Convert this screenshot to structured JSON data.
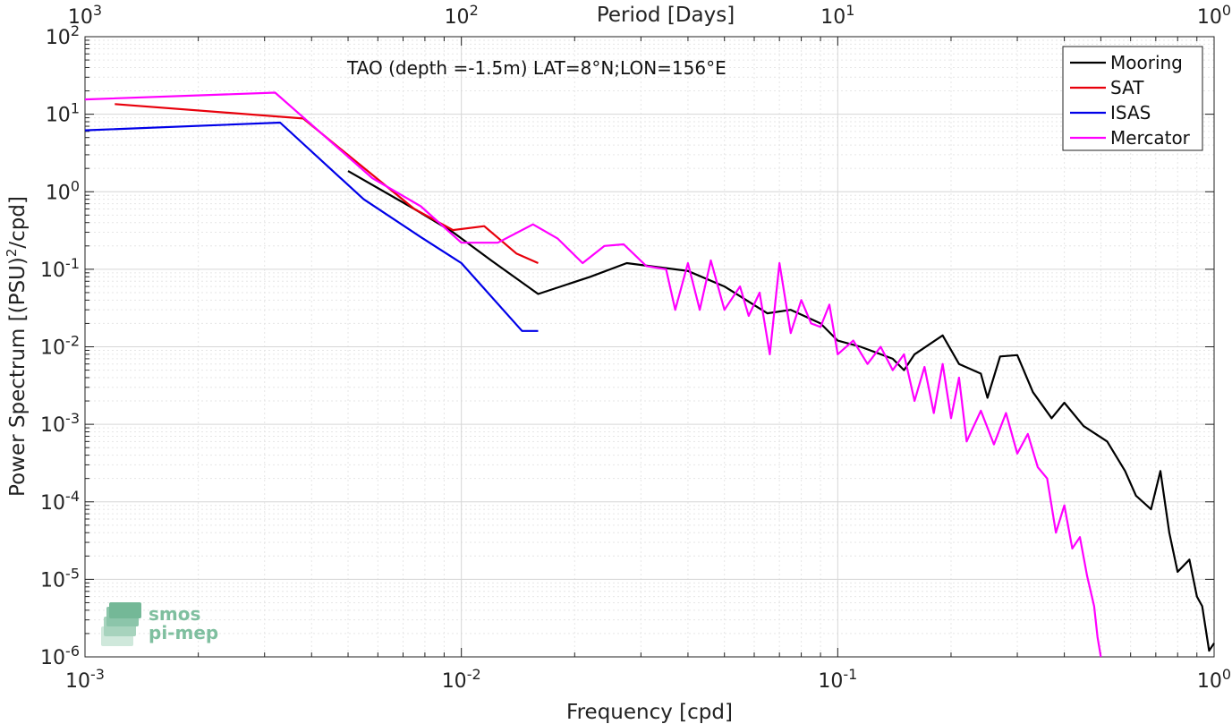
{
  "chart_data": {
    "type": "line",
    "title": "",
    "annotation": "TAO (depth =-1.5m) LAT=8°N;LON=156°E",
    "xlabel": "Frequency [cpd]",
    "ylabel": "Power Spectrum [(PSU)",
    "ylabel_sup": "2",
    "ylabel_tail": "/cpd]",
    "top_xlabel": "Period [Days]",
    "x_scale": "log",
    "y_scale": "log",
    "xlim": [
      0.001,
      1
    ],
    "ylim": [
      1e-06,
      100
    ],
    "grid": true,
    "legend_position": "top-right",
    "x_ticks": [
      {
        "value": 0.001,
        "base": "10",
        "exp": "-3"
      },
      {
        "value": 0.01,
        "base": "10",
        "exp": "-2"
      },
      {
        "value": 0.1,
        "base": "10",
        "exp": "-1"
      },
      {
        "value": 1,
        "base": "10",
        "exp": "0"
      }
    ],
    "y_ticks": [
      {
        "value": 100,
        "base": "10",
        "exp": "2"
      },
      {
        "value": 10,
        "base": "10",
        "exp": "1"
      },
      {
        "value": 1,
        "base": "10",
        "exp": "0"
      },
      {
        "value": 0.1,
        "base": "10",
        "exp": "-1"
      },
      {
        "value": 0.01,
        "base": "10",
        "exp": "-2"
      },
      {
        "value": 0.001,
        "base": "10",
        "exp": "-3"
      },
      {
        "value": 0.0001,
        "base": "10",
        "exp": "-4"
      },
      {
        "value": 1e-05,
        "base": "10",
        "exp": "-5"
      },
      {
        "value": 1e-06,
        "base": "10",
        "exp": "-6"
      }
    ],
    "top_ticks": [
      {
        "value": 0.001,
        "base": "10",
        "exp": "3"
      },
      {
        "value": 0.01,
        "base": "10",
        "exp": "2"
      },
      {
        "value": 0.1,
        "base": "10",
        "exp": "1"
      },
      {
        "value": 1,
        "base": "10",
        "exp": "0"
      }
    ],
    "series": [
      {
        "name": "Mooring",
        "color": "#000000",
        "points": [
          [
            0.005,
            1.85
          ],
          [
            0.0075,
            0.6
          ],
          [
            0.0095,
            0.3
          ],
          [
            0.012,
            0.13
          ],
          [
            0.016,
            0.048
          ],
          [
            0.022,
            0.08
          ],
          [
            0.0275,
            0.12
          ],
          [
            0.04,
            0.095
          ],
          [
            0.05,
            0.06
          ],
          [
            0.065,
            0.027
          ],
          [
            0.075,
            0.03
          ],
          [
            0.09,
            0.02
          ],
          [
            0.1,
            0.012
          ],
          [
            0.115,
            0.01
          ],
          [
            0.14,
            0.007
          ],
          [
            0.15,
            0.005
          ],
          [
            0.16,
            0.008
          ],
          [
            0.19,
            0.014
          ],
          [
            0.21,
            0.006
          ],
          [
            0.24,
            0.0045
          ],
          [
            0.25,
            0.0022
          ],
          [
            0.27,
            0.0075
          ],
          [
            0.3,
            0.0078
          ],
          [
            0.33,
            0.0026
          ],
          [
            0.37,
            0.0012
          ],
          [
            0.4,
            0.0019
          ],
          [
            0.45,
            0.00095
          ],
          [
            0.52,
            0.0006
          ],
          [
            0.58,
            0.00025
          ],
          [
            0.62,
            0.00012
          ],
          [
            0.68,
            8e-05
          ],
          [
            0.72,
            0.00025
          ],
          [
            0.76,
            4e-05
          ],
          [
            0.8,
            1.25e-05
          ],
          [
            0.86,
            1.8e-05
          ],
          [
            0.9,
            6e-06
          ],
          [
            0.93,
            4.5e-06
          ],
          [
            0.97,
            1.2e-06
          ],
          [
            1.0,
            1.5e-06
          ]
        ]
      },
      {
        "name": "SAT",
        "color": "#e8000b",
        "points": [
          [
            0.0012,
            13.5
          ],
          [
            0.0038,
            8.8
          ],
          [
            0.0075,
            0.6
          ],
          [
            0.0095,
            0.32
          ],
          [
            0.0115,
            0.36
          ],
          [
            0.014,
            0.16
          ],
          [
            0.016,
            0.12
          ]
        ]
      },
      {
        "name": "ISAS",
        "color": "#0000e8",
        "points": [
          [
            0.001,
            6.2
          ],
          [
            0.0033,
            7.8
          ],
          [
            0.0055,
            0.8
          ],
          [
            0.0078,
            0.26
          ],
          [
            0.01,
            0.12
          ],
          [
            0.0145,
            0.016
          ],
          [
            0.016,
            0.016
          ]
        ]
      },
      {
        "name": "Mercator",
        "color": "#ff00ff",
        "points": [
          [
            0.001,
            15.5
          ],
          [
            0.0032,
            19
          ],
          [
            0.0058,
            1.5
          ],
          [
            0.0078,
            0.65
          ],
          [
            0.01,
            0.22
          ],
          [
            0.0125,
            0.22
          ],
          [
            0.0155,
            0.38
          ],
          [
            0.018,
            0.25
          ],
          [
            0.021,
            0.12
          ],
          [
            0.024,
            0.2
          ],
          [
            0.027,
            0.21
          ],
          [
            0.031,
            0.11
          ],
          [
            0.035,
            0.1
          ],
          [
            0.037,
            0.03
          ],
          [
            0.04,
            0.12
          ],
          [
            0.043,
            0.03
          ],
          [
            0.046,
            0.13
          ],
          [
            0.05,
            0.03
          ],
          [
            0.055,
            0.06
          ],
          [
            0.058,
            0.025
          ],
          [
            0.062,
            0.05
          ],
          [
            0.066,
            0.008
          ],
          [
            0.07,
            0.12
          ],
          [
            0.075,
            0.015
          ],
          [
            0.08,
            0.04
          ],
          [
            0.085,
            0.02
          ],
          [
            0.09,
            0.018
          ],
          [
            0.095,
            0.035
          ],
          [
            0.1,
            0.008
          ],
          [
            0.11,
            0.012
          ],
          [
            0.12,
            0.006
          ],
          [
            0.13,
            0.01
          ],
          [
            0.14,
            0.005
          ],
          [
            0.15,
            0.008
          ],
          [
            0.16,
            0.002
          ],
          [
            0.17,
            0.0055
          ],
          [
            0.18,
            0.0014
          ],
          [
            0.19,
            0.006
          ],
          [
            0.2,
            0.0012
          ],
          [
            0.21,
            0.004
          ],
          [
            0.22,
            0.0006
          ],
          [
            0.24,
            0.0015
          ],
          [
            0.26,
            0.00055
          ],
          [
            0.28,
            0.0014
          ],
          [
            0.3,
            0.00042
          ],
          [
            0.32,
            0.00075
          ],
          [
            0.34,
            0.00028
          ],
          [
            0.36,
            0.0002
          ],
          [
            0.38,
            4e-05
          ],
          [
            0.4,
            9e-05
          ],
          [
            0.42,
            2.5e-05
          ],
          [
            0.44,
            3.5e-05
          ],
          [
            0.46,
            1.1e-05
          ],
          [
            0.48,
            4.5e-06
          ],
          [
            0.49,
            1.8e-06
          ],
          [
            0.5,
            1e-06
          ]
        ]
      }
    ]
  },
  "logo": {
    "line1": "smos",
    "line2": "pi-mep"
  }
}
